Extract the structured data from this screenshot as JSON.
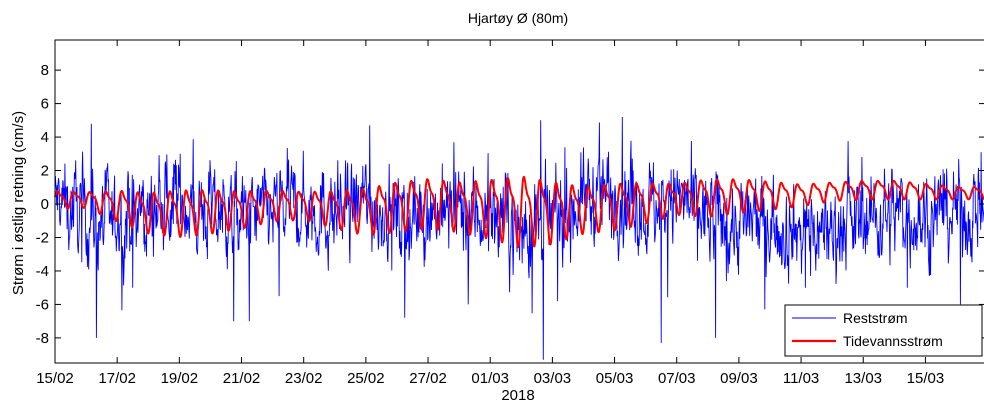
{
  "chart_data": {
    "type": "line",
    "title": "Hjartøy Ø (80m)",
    "xlabel": "2018",
    "ylabel": "Strøm i østlig retning (cm/s)",
    "ylim": [
      -9.5,
      9.8
    ],
    "xlim": [
      "2018-02-15",
      "2018-03-16 22:00"
    ],
    "yticks": [
      8,
      6,
      4,
      2,
      0,
      -2,
      -4,
      -6,
      -8
    ],
    "xticks": [
      "15/02",
      "17/02",
      "19/02",
      "21/02",
      "23/02",
      "25/02",
      "27/02",
      "01/03",
      "03/03",
      "05/03",
      "07/03",
      "09/03",
      "11/03",
      "13/03",
      "15/03"
    ],
    "grid": false,
    "legend_position": "bottom-right",
    "series": [
      {
        "name": "Reststrøm",
        "color": "#0000ff",
        "style": "noisy",
        "x": [
          "2018-02-15",
          "2018-02-16",
          "2018-02-17",
          "2018-02-18",
          "2018-02-19",
          "2018-02-20",
          "2018-02-21",
          "2018-02-22",
          "2018-02-23",
          "2018-02-24",
          "2018-02-25",
          "2018-02-26",
          "2018-02-27",
          "2018-02-28",
          "2018-03-01",
          "2018-03-02",
          "2018-03-03",
          "2018-03-04",
          "2018-03-05",
          "2018-03-06",
          "2018-03-07",
          "2018-03-08",
          "2018-03-09",
          "2018-03-10",
          "2018-03-11",
          "2018-03-12",
          "2018-03-13",
          "2018-03-14",
          "2018-03-15",
          "2018-03-16"
        ],
        "values": [
          0.2,
          -0.8,
          -1.2,
          -0.5,
          0.3,
          -0.6,
          -0.9,
          -0.4,
          -0.2,
          -0.7,
          0.1,
          -0.8,
          -0.3,
          -0.6,
          -0.5,
          -1.5,
          -1.2,
          0.4,
          0.8,
          -0.2,
          0.3,
          -0.9,
          -1.3,
          -0.8,
          -1.6,
          -1.4,
          -0.9,
          -0.5,
          -0.8,
          -0.4
        ],
        "peaks": [
          {
            "x": "2018-02-16 04:00",
            "y": 4.8
          },
          {
            "x": "2018-02-16 08:00",
            "y": -8.0
          },
          {
            "x": "2018-02-17 12:00",
            "y": -5.0
          },
          {
            "x": "2018-02-20 18:00",
            "y": -7.0
          },
          {
            "x": "2018-02-21 06:00",
            "y": -7.0
          },
          {
            "x": "2018-02-22 05:00",
            "y": -5.5
          },
          {
            "x": "2018-02-25 03:00",
            "y": 4.7
          },
          {
            "x": "2018-02-26 06:00",
            "y": -6.8
          },
          {
            "x": "2018-02-28 07:00",
            "y": -6.0
          },
          {
            "x": "2018-03-02 15:00",
            "y": 5.0
          },
          {
            "x": "2018-03-02 17:00",
            "y": -9.3
          },
          {
            "x": "2018-03-03 04:00",
            "y": -5.8
          },
          {
            "x": "2018-03-05 06:00",
            "y": 5.2
          },
          {
            "x": "2018-03-06 12:00",
            "y": -8.3
          },
          {
            "x": "2018-03-08 06:00",
            "y": -8.0
          },
          {
            "x": "2018-03-09 20:00",
            "y": -6.3
          },
          {
            "x": "2018-03-14 10:00",
            "y": -5.0
          },
          {
            "x": "2018-03-16 03:00",
            "y": -6.0
          },
          {
            "x": "2018-03-16 19:00",
            "y": 3.1
          }
        ]
      },
      {
        "name": "Tidevannsstrøm",
        "color": "#ff0000",
        "style": "tidal",
        "x": [
          "2018-02-15",
          "2018-02-16",
          "2018-02-17",
          "2018-02-18",
          "2018-02-19",
          "2018-02-20",
          "2018-02-21",
          "2018-02-22",
          "2018-02-23",
          "2018-02-24",
          "2018-02-25",
          "2018-02-26",
          "2018-02-27",
          "2018-02-28",
          "2018-03-01",
          "2018-03-02",
          "2018-03-03",
          "2018-03-04",
          "2018-03-05",
          "2018-03-06",
          "2018-03-07",
          "2018-03-08",
          "2018-03-09",
          "2018-03-10",
          "2018-03-11",
          "2018-03-12",
          "2018-03-13",
          "2018-03-14",
          "2018-03-15",
          "2018-03-16"
        ],
        "values": [
          0.3,
          0.3,
          0.0,
          -0.4,
          -0.4,
          -0.3,
          -0.2,
          0.0,
          0.0,
          -0.2,
          -0.3,
          0.0,
          0.2,
          0.0,
          -0.1,
          -0.2,
          -0.3,
          -0.2,
          0.0,
          0.2,
          0.4,
          0.5,
          0.6,
          0.6,
          0.6,
          0.8,
          0.9,
          0.9,
          0.8,
          0.7
        ],
        "amplitude": [
          0.6,
          0.5,
          1.0,
          1.3,
          1.5,
          1.4,
          1.2,
          1.0,
          0.9,
          1.2,
          1.5,
          1.6,
          1.6,
          1.6,
          1.9,
          2.3,
          2.0,
          1.5,
          1.5,
          1.3,
          1.0,
          1.2,
          1.1,
          0.9,
          0.7,
          0.6,
          0.6,
          0.6,
          0.5,
          0.4
        ]
      }
    ]
  }
}
